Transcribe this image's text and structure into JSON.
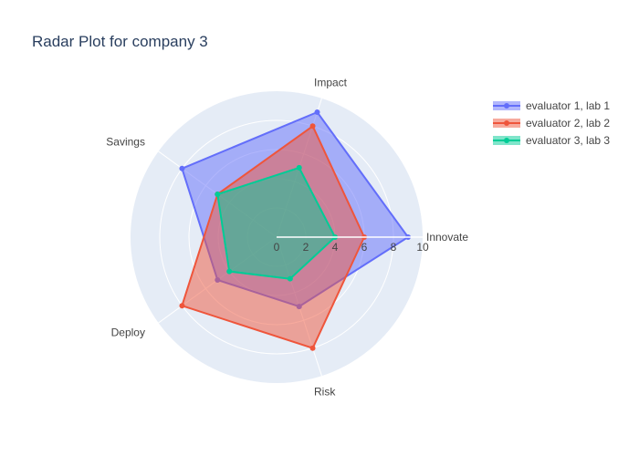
{
  "chart_data": {
    "type": "radar",
    "title": "Radar Plot for company 3",
    "categories": [
      "Innovate",
      "Impact",
      "Savings",
      "Deploy",
      "Risk"
    ],
    "radial_range": [
      0,
      10
    ],
    "radial_ticks": [
      "0",
      "2",
      "4",
      "6",
      "8",
      "10"
    ],
    "radial_tick_values": [
      0,
      2,
      4,
      6,
      8,
      10
    ],
    "legend_position": "top-right",
    "series": [
      {
        "name": "evaluator 1, lab 1",
        "color": "#636efa",
        "values": [
          9,
          9,
          8,
          5,
          5
        ]
      },
      {
        "name": "evaluator 2, lab 2",
        "color": "#ef553b",
        "values": [
          6,
          8,
          5,
          8,
          8
        ]
      },
      {
        "name": "evaluator 3, lab 3",
        "color": "#00cc96",
        "values": [
          4,
          5,
          5,
          4,
          3
        ]
      }
    ],
    "plot_background": "#e5ecf6",
    "grid_color": "#ffffff"
  }
}
